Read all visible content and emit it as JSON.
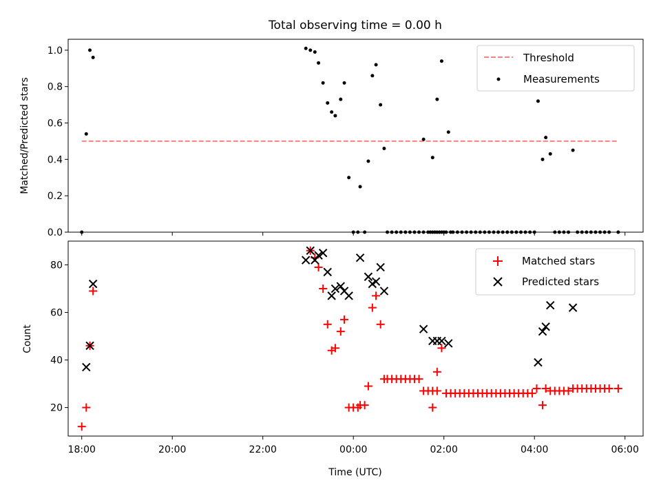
{
  "chart_data": [
    {
      "type": "scatter",
      "title": "Total observing time = 0.00 h",
      "xlabel": "",
      "ylabel": "Matched/Predicted stars",
      "x_unit": "hours since 18:00 UTC",
      "xlim": [
        -0.3,
        12.4
      ],
      "ylim": [
        0,
        1.06
      ],
      "yticks": [
        0.0,
        0.2,
        0.4,
        0.6,
        0.8,
        1.0
      ],
      "ytick_labels": [
        "0.0",
        "0.2",
        "0.4",
        "0.6",
        "0.8",
        "1.0"
      ],
      "legend": {
        "placement": "upper right",
        "entries": [
          "Threshold",
          "Measurements"
        ]
      },
      "series": [
        {
          "name": "Threshold",
          "kind": "dashed-line",
          "color": "#ff7f7f",
          "points": [
            [
              0.0,
              0.5
            ],
            [
              11.85,
              0.5
            ]
          ]
        },
        {
          "name": "Measurements",
          "kind": "dots",
          "color": "#000000",
          "points": [
            [
              0.0,
              0.0
            ],
            [
              0.1,
              0.54
            ],
            [
              0.18,
              1.0
            ],
            [
              0.25,
              0.96
            ],
            [
              4.95,
              1.01
            ],
            [
              5.05,
              1.0
            ],
            [
              5.15,
              0.99
            ],
            [
              5.23,
              0.93
            ],
            [
              5.33,
              0.82
            ],
            [
              5.43,
              0.71
            ],
            [
              5.52,
              0.66
            ],
            [
              5.6,
              0.64
            ],
            [
              5.72,
              0.73
            ],
            [
              5.8,
              0.82
            ],
            [
              5.9,
              0.3
            ],
            [
              6.0,
              0.0
            ],
            [
              6.1,
              0.0
            ],
            [
              6.15,
              0.25
            ],
            [
              6.25,
              0.0
            ],
            [
              6.33,
              0.39
            ],
            [
              6.42,
              0.86
            ],
            [
              6.5,
              0.92
            ],
            [
              6.6,
              0.7
            ],
            [
              6.68,
              0.46
            ],
            [
              6.75,
              0.0
            ],
            [
              6.85,
              0.0
            ],
            [
              6.95,
              0.0
            ],
            [
              7.05,
              0.0
            ],
            [
              7.15,
              0.0
            ],
            [
              7.25,
              0.0
            ],
            [
              7.35,
              0.0
            ],
            [
              7.45,
              0.0
            ],
            [
              7.55,
              0.0
            ],
            [
              7.65,
              0.0
            ],
            [
              7.75,
              0.0
            ],
            [
              7.85,
              0.0
            ],
            [
              7.95,
              0.0
            ],
            [
              8.05,
              0.0
            ],
            [
              8.15,
              0.0
            ],
            [
              7.55,
              0.51
            ],
            [
              7.7,
              0.0
            ],
            [
              7.8,
              0.0
            ],
            [
              7.9,
              0.0
            ],
            [
              7.75,
              0.41
            ],
            [
              7.85,
              0.73
            ],
            [
              7.95,
              0.94
            ],
            [
              8.0,
              0.0
            ],
            [
              8.1,
              0.55
            ],
            [
              8.2,
              0.0
            ],
            [
              8.3,
              0.0
            ],
            [
              8.4,
              0.0
            ],
            [
              8.5,
              0.0
            ],
            [
              8.6,
              0.0
            ],
            [
              8.7,
              0.0
            ],
            [
              8.8,
              0.0
            ],
            [
              8.9,
              0.0
            ],
            [
              9.0,
              0.0
            ],
            [
              9.1,
              0.0
            ],
            [
              9.2,
              0.0
            ],
            [
              9.3,
              0.0
            ],
            [
              9.4,
              0.0
            ],
            [
              9.5,
              0.0
            ],
            [
              9.6,
              0.0
            ],
            [
              9.7,
              0.0
            ],
            [
              9.8,
              0.0
            ],
            [
              9.9,
              0.0
            ],
            [
              10.0,
              0.0
            ],
            [
              10.08,
              0.72
            ],
            [
              10.18,
              0.4
            ],
            [
              10.25,
              0.52
            ],
            [
              10.35,
              0.43
            ],
            [
              10.45,
              0.0
            ],
            [
              10.55,
              0.0
            ],
            [
              10.65,
              0.0
            ],
            [
              10.75,
              0.0
            ],
            [
              10.85,
              0.45
            ],
            [
              10.95,
              0.0
            ],
            [
              11.05,
              0.0
            ],
            [
              11.15,
              0.0
            ],
            [
              11.25,
              0.0
            ],
            [
              11.35,
              0.0
            ],
            [
              11.45,
              0.0
            ],
            [
              11.55,
              0.0
            ],
            [
              11.65,
              0.0
            ],
            [
              11.85,
              0.0
            ]
          ]
        }
      ]
    },
    {
      "type": "scatter",
      "title": "",
      "xlabel": "Time (UTC)",
      "ylabel": "Count",
      "x_unit": "hours since 18:00 UTC",
      "xlim": [
        -0.3,
        12.4
      ],
      "ylim": [
        8,
        90
      ],
      "xticks": [
        0,
        2,
        4,
        6,
        8,
        10,
        12
      ],
      "xtick_labels": [
        "18:00",
        "20:00",
        "22:00",
        "00:00",
        "02:00",
        "04:00",
        "06:00"
      ],
      "yticks": [
        20,
        40,
        60,
        80
      ],
      "ytick_labels": [
        "20",
        "40",
        "60",
        "80"
      ],
      "legend": {
        "placement": "upper right",
        "entries": [
          "Matched stars",
          "Predicted stars"
        ]
      },
      "series": [
        {
          "name": "Matched stars",
          "kind": "plus",
          "color": "#ff0000",
          "points": [
            [
              0.0,
              12
            ],
            [
              0.1,
              20
            ],
            [
              0.18,
              46
            ],
            [
              0.25,
              69
            ],
            [
              5.05,
              86
            ],
            [
              5.15,
              83
            ],
            [
              5.23,
              79
            ],
            [
              5.33,
              70
            ],
            [
              5.43,
              55
            ],
            [
              5.52,
              44
            ],
            [
              5.6,
              45
            ],
            [
              5.72,
              52
            ],
            [
              5.8,
              57
            ],
            [
              5.9,
              20
            ],
            [
              6.0,
              20
            ],
            [
              6.1,
              20
            ],
            [
              6.15,
              21
            ],
            [
              6.25,
              21
            ],
            [
              6.33,
              29
            ],
            [
              6.42,
              62
            ],
            [
              6.5,
              67
            ],
            [
              6.6,
              55
            ],
            [
              6.68,
              32
            ],
            [
              6.75,
              32
            ],
            [
              6.85,
              32
            ],
            [
              6.95,
              32
            ],
            [
              7.05,
              32
            ],
            [
              7.15,
              32
            ],
            [
              7.25,
              32
            ],
            [
              7.35,
              32
            ],
            [
              7.45,
              32
            ],
            [
              7.55,
              27
            ],
            [
              7.65,
              27
            ],
            [
              7.75,
              27
            ],
            [
              7.85,
              27
            ],
            [
              7.75,
              20
            ],
            [
              7.85,
              35
            ],
            [
              7.95,
              45
            ],
            [
              8.05,
              26
            ],
            [
              8.15,
              26
            ],
            [
              8.25,
              26
            ],
            [
              8.35,
              26
            ],
            [
              8.45,
              26
            ],
            [
              8.55,
              26
            ],
            [
              8.65,
              26
            ],
            [
              8.75,
              26
            ],
            [
              8.85,
              26
            ],
            [
              8.95,
              26
            ],
            [
              9.05,
              26
            ],
            [
              9.15,
              26
            ],
            [
              9.25,
              26
            ],
            [
              9.35,
              26
            ],
            [
              9.45,
              26
            ],
            [
              9.55,
              26
            ],
            [
              9.65,
              26
            ],
            [
              9.75,
              26
            ],
            [
              9.85,
              26
            ],
            [
              9.95,
              26
            ],
            [
              10.05,
              28
            ],
            [
              10.18,
              21
            ],
            [
              10.25,
              28
            ],
            [
              10.35,
              27
            ],
            [
              10.45,
              27
            ],
            [
              10.55,
              27
            ],
            [
              10.65,
              27
            ],
            [
              10.75,
              27
            ],
            [
              10.85,
              28
            ],
            [
              10.95,
              28
            ],
            [
              11.05,
              28
            ],
            [
              11.15,
              28
            ],
            [
              11.25,
              28
            ],
            [
              11.35,
              28
            ],
            [
              11.45,
              28
            ],
            [
              11.55,
              28
            ],
            [
              11.65,
              28
            ],
            [
              11.85,
              28
            ]
          ]
        },
        {
          "name": "Predicted stars",
          "kind": "x",
          "color": "#000000",
          "points": [
            [
              0.1,
              37
            ],
            [
              0.18,
              46
            ],
            [
              0.25,
              72
            ],
            [
              4.95,
              82
            ],
            [
              5.05,
              86
            ],
            [
              5.15,
              82
            ],
            [
              5.23,
              84
            ],
            [
              5.33,
              85
            ],
            [
              5.43,
              77
            ],
            [
              5.52,
              67
            ],
            [
              5.6,
              70
            ],
            [
              5.72,
              71
            ],
            [
              5.8,
              69
            ],
            [
              5.9,
              67
            ],
            [
              6.15,
              83
            ],
            [
              6.33,
              75
            ],
            [
              6.42,
              72
            ],
            [
              6.5,
              73
            ],
            [
              6.6,
              79
            ],
            [
              6.68,
              69
            ],
            [
              7.55,
              53
            ],
            [
              7.75,
              48
            ],
            [
              7.85,
              48
            ],
            [
              7.95,
              48
            ],
            [
              8.1,
              47
            ],
            [
              10.08,
              39
            ],
            [
              10.18,
              52
            ],
            [
              10.25,
              54
            ],
            [
              10.35,
              63
            ],
            [
              10.85,
              62
            ]
          ]
        }
      ]
    }
  ]
}
